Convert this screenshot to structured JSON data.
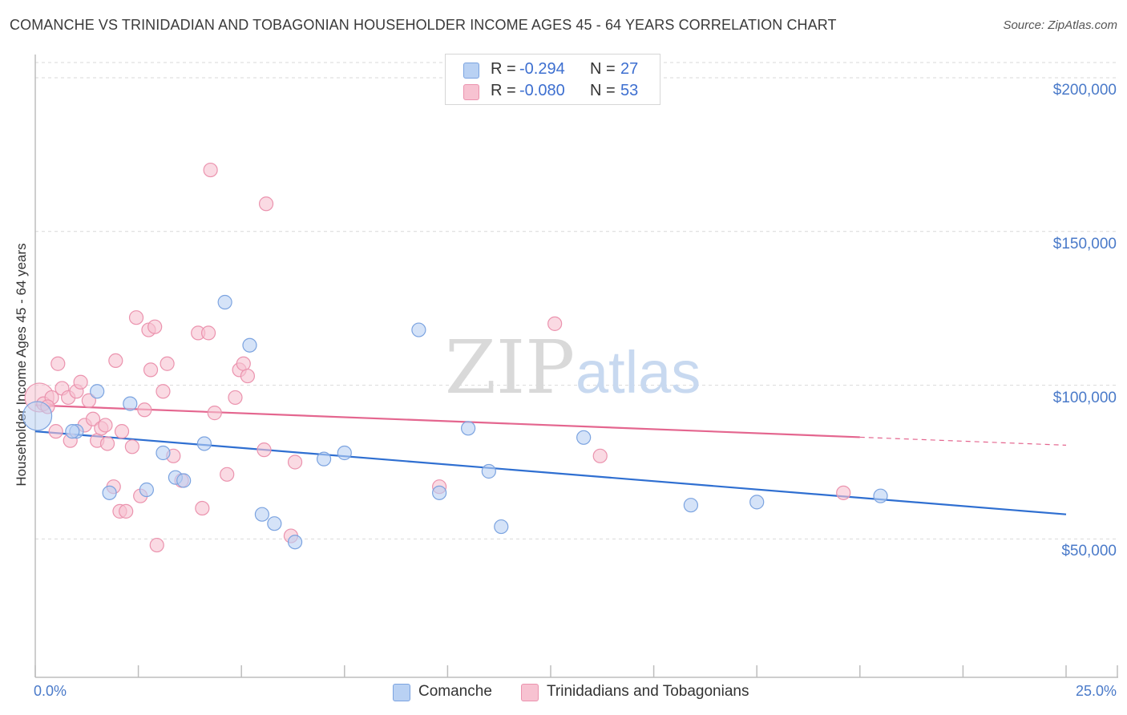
{
  "title": "COMANCHE VS TRINIDADIAN AND TOBAGONIAN HOUSEHOLDER INCOME AGES 45 - 64 YEARS CORRELATION CHART",
  "source": "Source: ZipAtlas.com",
  "watermark": "ZIPatlas",
  "colors": {
    "blue_fill": "#b9d1f3",
    "blue_stroke": "#7ba3e0",
    "blue_line": "#2f6fd1",
    "pink_fill": "#f7c2d1",
    "pink_stroke": "#eb93ae",
    "pink_line": "#e4668f",
    "grid": "#d9d9d9",
    "axis_text": "#4a7ac9"
  },
  "legend": {
    "rows": [
      {
        "r_label": "R =",
        "r_value": "-0.294",
        "n_label": "N =",
        "n_value": "27"
      },
      {
        "r_label": "R =",
        "r_value": "-0.080",
        "n_label": "N =",
        "n_value": "53"
      }
    ]
  },
  "bottom_legend": [
    "Comanche",
    "Trinidadians and Tobagonians"
  ],
  "chart_data": {
    "type": "scatter",
    "title": "COMANCHE VS TRINIDADIAN AND TOBAGONIAN HOUSEHOLDER INCOME AGES 45 - 64 YEARS CORRELATION CHART",
    "xlabel": "",
    "ylabel": "Householder Income Ages 45 - 64 years",
    "xlim": [
      0,
      25
    ],
    "ylim": [
      5000,
      210000
    ],
    "x_tick_labels": [
      "0.0%",
      "25.0%"
    ],
    "y_ticks": [
      50000,
      100000,
      150000,
      200000
    ],
    "y_tick_labels": [
      "$50,000",
      "$100,000",
      "$150,000",
      "$200,000"
    ],
    "grid": true,
    "series": [
      {
        "name": "Comanche",
        "R": -0.294,
        "N": 27,
        "trend": {
          "x0": 0,
          "y0": 85000,
          "x1": 25,
          "y1": 58000,
          "solid_until": 25
        },
        "points": [
          {
            "x": 0.05,
            "y": 90000,
            "big": true
          },
          {
            "x": 1.0,
            "y": 85000
          },
          {
            "x": 1.5,
            "y": 98000
          },
          {
            "x": 1.8,
            "y": 65000
          },
          {
            "x": 2.3,
            "y": 94000
          },
          {
            "x": 2.7,
            "y": 66000
          },
          {
            "x": 3.1,
            "y": 78000
          },
          {
            "x": 3.4,
            "y": 70000
          },
          {
            "x": 3.6,
            "y": 69000
          },
          {
            "x": 4.1,
            "y": 81000
          },
          {
            "x": 4.6,
            "y": 127000
          },
          {
            "x": 5.2,
            "y": 113000
          },
          {
            "x": 5.5,
            "y": 58000
          },
          {
            "x": 5.8,
            "y": 55000
          },
          {
            "x": 6.3,
            "y": 49000
          },
          {
            "x": 7.0,
            "y": 76000
          },
          {
            "x": 7.5,
            "y": 78000
          },
          {
            "x": 9.3,
            "y": 118000
          },
          {
            "x": 9.8,
            "y": 65000
          },
          {
            "x": 10.5,
            "y": 86000
          },
          {
            "x": 11.0,
            "y": 72000
          },
          {
            "x": 11.3,
            "y": 54000
          },
          {
            "x": 13.3,
            "y": 83000
          },
          {
            "x": 15.9,
            "y": 61000
          },
          {
            "x": 17.5,
            "y": 62000
          },
          {
            "x": 20.5,
            "y": 64000
          },
          {
            "x": 0.9,
            "y": 85000
          }
        ]
      },
      {
        "name": "Trinidadians and Tobagonians",
        "R": -0.08,
        "N": 53,
        "trend": {
          "x0": 0,
          "y0": 93500,
          "x1": 25,
          "y1": 80500,
          "solid_until": 20
        },
        "points": [
          {
            "x": 0.1,
            "y": 96000,
            "big": true
          },
          {
            "x": 0.2,
            "y": 94000
          },
          {
            "x": 0.4,
            "y": 96000
          },
          {
            "x": 0.5,
            "y": 85000
          },
          {
            "x": 0.55,
            "y": 107000
          },
          {
            "x": 0.65,
            "y": 99000
          },
          {
            "x": 0.8,
            "y": 96000
          },
          {
            "x": 0.85,
            "y": 82000
          },
          {
            "x": 1.0,
            "y": 98000
          },
          {
            "x": 1.1,
            "y": 101000
          },
          {
            "x": 1.2,
            "y": 87000
          },
          {
            "x": 1.3,
            "y": 95000
          },
          {
            "x": 1.4,
            "y": 89000
          },
          {
            "x": 1.5,
            "y": 82000
          },
          {
            "x": 1.6,
            "y": 86000
          },
          {
            "x": 1.7,
            "y": 87000
          },
          {
            "x": 1.75,
            "y": 81000
          },
          {
            "x": 1.9,
            "y": 67000
          },
          {
            "x": 1.95,
            "y": 108000
          },
          {
            "x": 2.05,
            "y": 59000
          },
          {
            "x": 2.1,
            "y": 85000
          },
          {
            "x": 2.2,
            "y": 59000
          },
          {
            "x": 2.35,
            "y": 80000
          },
          {
            "x": 2.45,
            "y": 122000
          },
          {
            "x": 2.55,
            "y": 64000
          },
          {
            "x": 2.65,
            "y": 92000
          },
          {
            "x": 2.75,
            "y": 118000
          },
          {
            "x": 2.8,
            "y": 105000
          },
          {
            "x": 2.9,
            "y": 119000
          },
          {
            "x": 2.95,
            "y": 48000
          },
          {
            "x": 3.1,
            "y": 98000
          },
          {
            "x": 3.2,
            "y": 107000
          },
          {
            "x": 3.35,
            "y": 77000
          },
          {
            "x": 3.55,
            "y": 69000
          },
          {
            "x": 3.95,
            "y": 117000
          },
          {
            "x": 4.05,
            "y": 60000
          },
          {
            "x": 4.2,
            "y": 117000
          },
          {
            "x": 4.25,
            "y": 170000
          },
          {
            "x": 4.35,
            "y": 91000
          },
          {
            "x": 4.65,
            "y": 71000
          },
          {
            "x": 4.85,
            "y": 96000
          },
          {
            "x": 4.95,
            "y": 105000
          },
          {
            "x": 5.05,
            "y": 107000
          },
          {
            "x": 5.15,
            "y": 103000
          },
          {
            "x": 5.55,
            "y": 79000
          },
          {
            "x": 5.6,
            "y": 159000
          },
          {
            "x": 6.2,
            "y": 51000
          },
          {
            "x": 6.3,
            "y": 75000
          },
          {
            "x": 9.8,
            "y": 67000
          },
          {
            "x": 12.6,
            "y": 120000
          },
          {
            "x": 13.7,
            "y": 77000
          },
          {
            "x": 19.6,
            "y": 65000
          },
          {
            "x": 0.3,
            "y": 93000
          }
        ]
      }
    ]
  }
}
